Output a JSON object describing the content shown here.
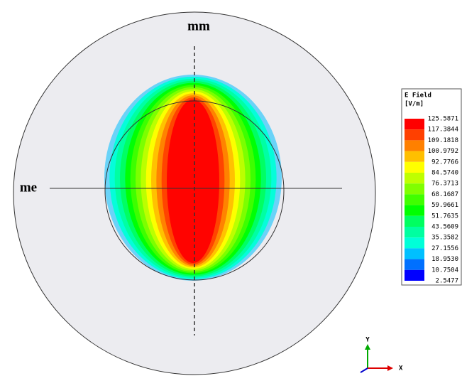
{
  "labels": {
    "top": "mm",
    "left": "me"
  },
  "legend": {
    "title": "E Field",
    "unit": "[V/m]",
    "values": [
      "125.5871",
      "117.3844",
      "109.1818",
      "100.9792",
      "92.7766",
      "84.5740",
      "76.3713",
      "68.1687",
      "59.9661",
      "51.7635",
      "43.5609",
      "35.3582",
      "27.1556",
      "18.9530",
      "10.7504",
      "2.5477"
    ],
    "colors": [
      "#ff0000",
      "#ff4000",
      "#ff8000",
      "#ffbf00",
      "#ffff00",
      "#bfff00",
      "#80ff00",
      "#40ff00",
      "#00ff00",
      "#00ff60",
      "#00ffa0",
      "#00ffd8",
      "#00c0ff",
      "#0070ff",
      "#0000ff"
    ]
  },
  "triad": {
    "y": "Y",
    "x": "X"
  }
}
